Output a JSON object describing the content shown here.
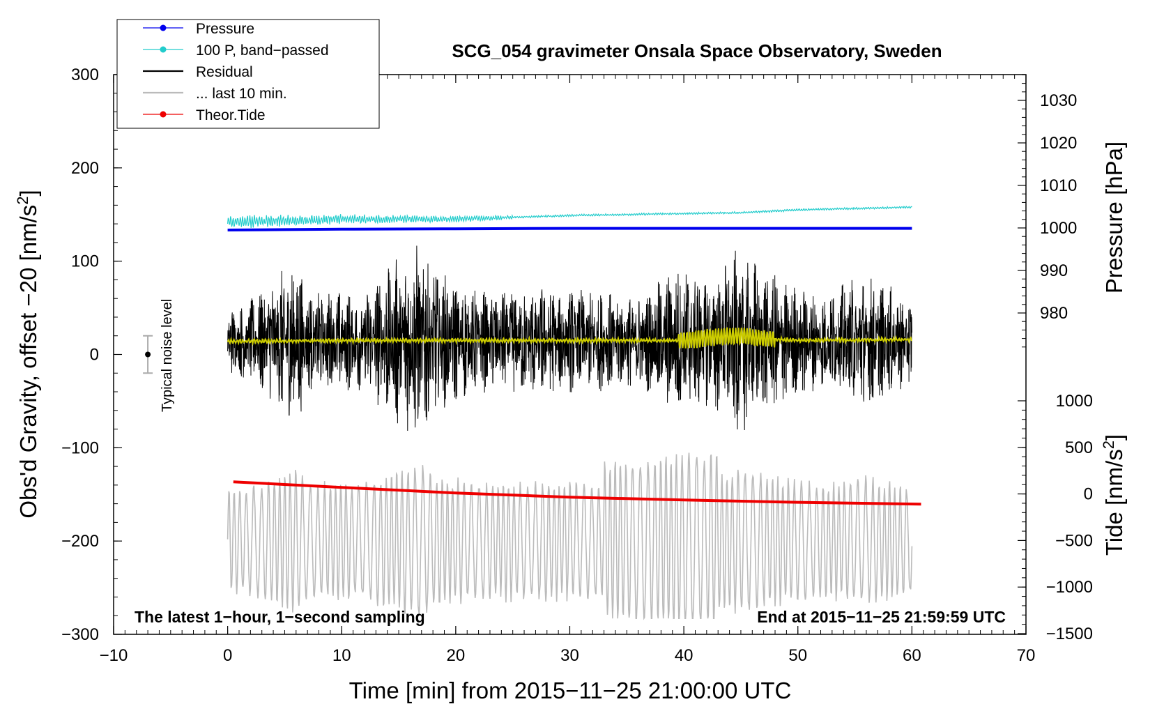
{
  "chart_data": {
    "type": "line",
    "title": "SCG_054 gravimeter Onsala Space Observatory, Sweden",
    "xlabel": "Time [min] from 2015−11−25 21:00:00 UTC",
    "ylabel_left": "Obs'd Gravity, offset −20 [nm/s",
    "ylabel_left_sup": "2",
    "ylabel_left_end": "]",
    "ylabel_right_pressure": "Pressure [hPa]",
    "ylabel_right_tide": "Tide [nm/s",
    "ylabel_right_tide_sup": "2",
    "ylabel_right_tide_end": "]",
    "xlim": [
      -10,
      70
    ],
    "ylim": [
      -300,
      300
    ],
    "pressure_axis": {
      "range": [
        980,
        1030
      ],
      "ticks": [
        "980",
        "990",
        "1000",
        "1010",
        "1020",
        "1030"
      ]
    },
    "tide_axis": {
      "range": [
        -1500,
        1000
      ],
      "ticks": [
        "1000",
        "500",
        "0",
        "−500",
        "−1000",
        "−1500"
      ]
    },
    "x_ticks": [
      "−10",
      "0",
      "10",
      "20",
      "30",
      "40",
      "50",
      "60",
      "70"
    ],
    "y_ticks": [
      "300",
      "200",
      "100",
      "0",
      "−100",
      "−200",
      "−300"
    ],
    "legend": [
      {
        "name": "Pressure",
        "color": "#0000ee"
      },
      {
        "name": "100 P, band−passed",
        "color": "#22cccc"
      },
      {
        "name": "Residual",
        "color": "#000000"
      },
      {
        "name": "... last 10 min.",
        "color": "#bbbbbb"
      },
      {
        "name": "Theor.Tide",
        "color": "#ee0000"
      }
    ],
    "series": [
      {
        "name": "Pressure",
        "units": "hPa",
        "x": [
          0,
          5,
          10,
          20,
          30,
          40,
          50,
          60
        ],
        "values": [
          999.5,
          999.6,
          999.7,
          999.8,
          999.9,
          999.9,
          999.9,
          999.9
        ]
      },
      {
        "name": "100 P, band−passed",
        "units": "nm/s2",
        "x": [
          0,
          10,
          20,
          30,
          40,
          45,
          50,
          60
        ],
        "values": [
          142,
          145,
          145,
          149,
          151,
          152,
          155,
          158
        ]
      },
      {
        "name": "Residual",
        "units": "nm/s2",
        "x": [
          0,
          60
        ],
        "center": 14,
        "peak_min": -108,
        "peak_max": 128
      },
      {
        "name": "Residual smoothed",
        "units": "nm/s2",
        "x": [
          0,
          10,
          20,
          30,
          40,
          42,
          45,
          47,
          50,
          60
        ],
        "values": [
          14,
          15,
          15,
          15,
          15,
          18,
          20,
          17,
          15,
          16
        ]
      },
      {
        "name": "... last 10 min.",
        "units": "nm/s2",
        "x": [
          0,
          60
        ],
        "center": -200,
        "peak_min": -283,
        "peak_max": -95
      },
      {
        "name": "Theor.Tide",
        "units": "nm/s2",
        "x": [
          0.5,
          10,
          20,
          30,
          40,
          50,
          60.8
        ],
        "values": [
          130,
          70,
          10,
          -35,
          -65,
          -90,
          -110
        ]
      }
    ],
    "noise_bar": {
      "label": "Typical noise level",
      "x": -7,
      "y": 0,
      "half_range": 20
    },
    "note_left": "The latest 1−hour, 1−second sampling",
    "note_right": "End at 2015−11−25 21:59:59 UTC"
  }
}
